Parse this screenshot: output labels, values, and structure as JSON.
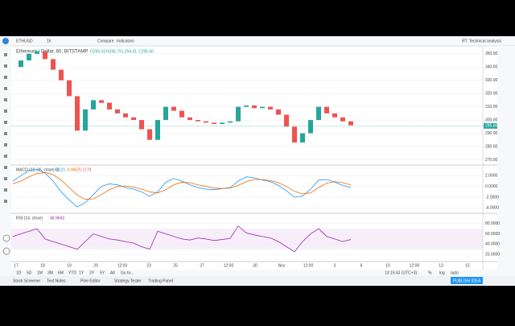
{
  "toolbar": {
    "symbol": "ETHUSD",
    "interval": "1h",
    "compare": "Compare",
    "indicators": "Indicators",
    "idea": "RT: Technical analysis"
  },
  "legend": {
    "title": "Ethereum / Dollar, 60, BITSTAMP",
    "ohlc": [
      "O295.02",
      "H295.79",
      "L294.41",
      "C295.60"
    ]
  },
  "price": {
    "closes": [
      340,
      345,
      350,
      352,
      346,
      338,
      330,
      318,
      292,
      308,
      315,
      313,
      308,
      305,
      302,
      300,
      293,
      285,
      300,
      310,
      307,
      302,
      300,
      299,
      298,
      297,
      298,
      299,
      310,
      311,
      309,
      310,
      308,
      304,
      295,
      283,
      290,
      300,
      310,
      305,
      302,
      299,
      296
    ],
    "ylim": [
      266,
      356
    ],
    "yticks": [
      {
        "value": 350,
        "label": "350.00"
      },
      {
        "value": 340,
        "label": "340.00"
      },
      {
        "value": 330,
        "label": "330.00"
      },
      {
        "value": 320,
        "label": "320.00"
      },
      {
        "value": 310,
        "label": "310.00"
      },
      {
        "value": 300,
        "label": "300.00"
      },
      {
        "value": 290,
        "label": "290.00"
      },
      {
        "value": 280,
        "label": "280.00"
      },
      {
        "value": 270,
        "label": "270.00"
      }
    ],
    "last": {
      "value": 295.6,
      "label": "295.60"
    }
  },
  "macd": {
    "title": "MACD (12, 26, close, 9)",
    "readout": [
      "0.3121",
      "-0.9067",
      "1.2178"
    ],
    "macd": [
      1,
      2,
      3,
      3.2,
      2.5,
      1,
      -1,
      -2.5,
      -3.8,
      -3,
      -1.5,
      0,
      0.5,
      0.3,
      -0.2,
      -0.5,
      -1,
      -1.8,
      -1,
      0.8,
      1.5,
      1,
      0.3,
      -0.2,
      -0.5,
      -0.6,
      -0.4,
      -0.2,
      1,
      1.8,
      1.6,
      1.2,
      0.9,
      0.2,
      -0.8,
      -2,
      -1.8,
      -0.5,
      1.2,
      1.3,
      0.8,
      0.2,
      -0.2
    ],
    "signal": [
      0.5,
      1,
      1.8,
      2.4,
      2.6,
      2.2,
      1.2,
      -0.2,
      -1.6,
      -2.4,
      -2.3,
      -1.5,
      -0.6,
      0,
      0.1,
      -0.1,
      -0.5,
      -1,
      -1.2,
      -0.6,
      0.3,
      0.8,
      0.7,
      0.3,
      0,
      -0.3,
      -0.4,
      -0.3,
      0.2,
      0.9,
      1.3,
      1.3,
      1.1,
      0.7,
      0,
      -0.9,
      -1.4,
      -1.2,
      -0.2,
      0.6,
      0.9,
      0.7,
      0.3
    ],
    "ylim": [
      -5,
      4
    ],
    "yticks": [
      {
        "value": 2,
        "label": "2.0000"
      },
      {
        "value": 0,
        "label": "0.0000"
      },
      {
        "value": -2,
        "label": "-2.0000"
      },
      {
        "value": -4,
        "label": "-4.0000"
      }
    ]
  },
  "rsi": {
    "title": "RSI (14, close)",
    "readout": "48.9643",
    "values": [
      55,
      60,
      65,
      70,
      50,
      45,
      40,
      35,
      30,
      45,
      60,
      55,
      50,
      48,
      45,
      42,
      35,
      30,
      65,
      60,
      55,
      50,
      48,
      52,
      50,
      47,
      49,
      51,
      75,
      62,
      58,
      55,
      52,
      45,
      35,
      25,
      45,
      60,
      70,
      55,
      50,
      45,
      49
    ],
    "ylim": [
      6,
      100
    ],
    "band": [
      30,
      70
    ],
    "yticks": [
      {
        "value": 80,
        "label": "80.0000"
      },
      {
        "value": 60,
        "label": "60.0000"
      },
      {
        "value": 40,
        "label": "40.0000"
      },
      {
        "value": 20,
        "label": "20.0000"
      }
    ]
  },
  "time_axis": [
    "17",
    "18",
    "19",
    "20",
    "12:00",
    "23",
    "25",
    "27",
    "12:00",
    "30",
    "Nov",
    "12:00",
    "3",
    "6",
    "10",
    "12:00",
    "13",
    "15"
  ],
  "ranges": [
    "1D",
    "5D",
    "1M",
    "3M",
    "6M",
    "YTD",
    "1Y",
    "3Y",
    "5Y",
    "All",
    "Go to..."
  ],
  "clock": "13:15:43 (UTC+3)",
  "scale_options": [
    "%",
    "log",
    "auto"
  ],
  "tabs": [
    "Stock Screener",
    "Text Notes",
    "Pine Editor",
    "Strategy Tester",
    "Trading Panel"
  ],
  "publish": "PUBLISH IDEA"
}
